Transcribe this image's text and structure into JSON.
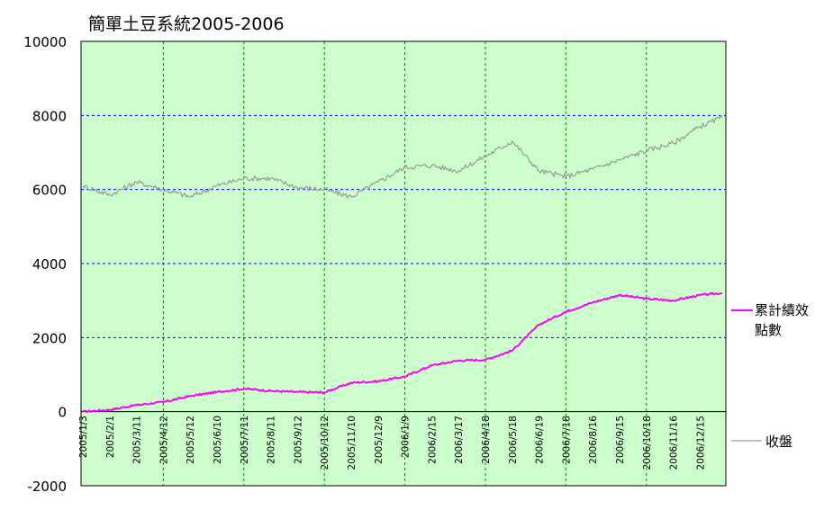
{
  "chart_data": {
    "type": "line",
    "title": "簡單土豆系統2005-2006",
    "ylim": [
      -2000,
      10000
    ],
    "yticks": [
      10000,
      8000,
      6000,
      4000,
      2000,
      0,
      -2000
    ],
    "ytick_labels": [
      "10000",
      "8000",
      "6000",
      "4000",
      "2000",
      "0",
      "-2000"
    ],
    "xtick_labels": [
      "2005/1/3",
      "2005/2/1",
      "2005/3/11",
      "2005/4/12",
      "2005/5/12",
      "2005/6/10",
      "2005/7/11",
      "2005/8/11",
      "2005/9/12",
      "2005/10/12",
      "2005/11/10",
      "2005/12/9",
      "2006/1/9",
      "2006/2/15",
      "2006/3/17",
      "2006/4/18",
      "2006/5/18",
      "2006/6/19",
      "2006/7/18",
      "2006/8/16",
      "2006/9/15",
      "2006/10/18",
      "2006/11/16",
      "2006/12/15"
    ],
    "plot_background": "#ccffcc",
    "horizontal_grid": "dashed",
    "vertical_grid": "dashed, every third date label",
    "legend_position": "right",
    "series": [
      {
        "name": "累計績效點數",
        "color": "#ff00ff",
        "x": [
          "2005/1/3",
          "2005/2/1",
          "2005/3/11",
          "2005/4/12",
          "2005/5/12",
          "2005/6/10",
          "2005/7/11",
          "2005/8/11",
          "2005/9/12",
          "2005/10/12",
          "2005/11/10",
          "2005/12/9",
          "2006/1/9",
          "2006/2/15",
          "2006/3/17",
          "2006/4/18",
          "2006/5/18",
          "2006/6/19",
          "2006/7/18",
          "2006/8/16",
          "2006/9/15",
          "2006/10/18",
          "2006/11/16",
          "2006/12/15",
          "2006/12/29"
        ],
        "values": [
          0,
          50,
          180,
          260,
          420,
          530,
          620,
          560,
          530,
          520,
          780,
          820,
          950,
          1250,
          1380,
          1400,
          1650,
          2350,
          2700,
          2950,
          3150,
          3050,
          3000,
          3150,
          3200
        ]
      },
      {
        "name": "收盤",
        "color": "#999999",
        "x": [
          "2005/1/3",
          "2005/2/1",
          "2005/3/11",
          "2005/4/12",
          "2005/5/12",
          "2005/6/10",
          "2005/7/11",
          "2005/8/11",
          "2005/9/12",
          "2005/10/12",
          "2005/11/10",
          "2005/12/9",
          "2006/1/9",
          "2006/2/15",
          "2006/3/17",
          "2006/4/18",
          "2006/5/18",
          "2006/6/19",
          "2006/7/18",
          "2006/8/16",
          "2006/9/15",
          "2006/10/18",
          "2006/11/16",
          "2006/12/15",
          "2006/12/29"
        ],
        "values": [
          6100,
          5850,
          6200,
          6000,
          5800,
          6100,
          6300,
          6300,
          6050,
          6000,
          5800,
          6200,
          6600,
          6650,
          6500,
          6900,
          7300,
          6500,
          6350,
          6550,
          6800,
          7050,
          7250,
          7700,
          7950
        ]
      }
    ]
  }
}
